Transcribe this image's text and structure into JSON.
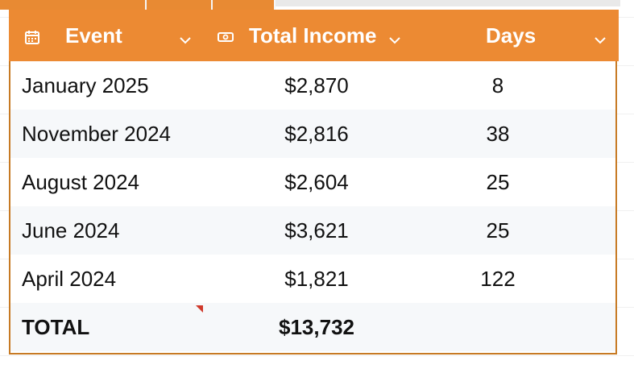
{
  "colors": {
    "header_bg": "#ec8a33",
    "border": "#c77a24",
    "alt_row": "#f6f8fa",
    "comment_marker": "#d0392b"
  },
  "header": {
    "event": {
      "label": "Event",
      "icon": "calendar-icon"
    },
    "income": {
      "label": "Total Income",
      "icon": "money-icon"
    },
    "days": {
      "label": "Days"
    }
  },
  "rows": [
    {
      "event": "January 2025",
      "income": "$2,870",
      "days": "8"
    },
    {
      "event": "November 2024",
      "income": "$2,816",
      "days": "38"
    },
    {
      "event": "August 2024",
      "income": "$2,604",
      "days": "25"
    },
    {
      "event": "June 2024",
      "income": "$3,621",
      "days": "25"
    },
    {
      "event": "April 2024",
      "income": "$1,821",
      "days": "122"
    }
  ],
  "total": {
    "label": "TOTAL",
    "income": "$13,732",
    "days": ""
  }
}
